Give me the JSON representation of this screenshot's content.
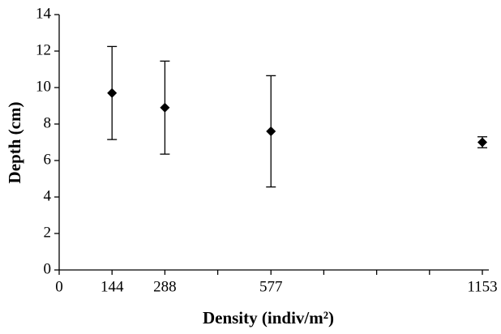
{
  "chart_data": {
    "type": "scatter",
    "x_label": "Density (indiv/m²)",
    "y_label": "Depth (cm)",
    "x": [
      144,
      288,
      577,
      1153
    ],
    "values": [
      9.7,
      8.9,
      7.6,
      7.0
    ],
    "errors": [
      2.55,
      2.55,
      3.05,
      0.3
    ],
    "color": "#000000",
    "xlim": [
      0,
      1153
    ],
    "xticks": [
      0,
      144,
      288,
      577,
      1153
    ],
    "xminor_ticks": [
      432,
      721,
      865,
      1009
    ],
    "ylim": [
      0,
      14
    ],
    "yticks": [
      0,
      2,
      4,
      6,
      8,
      10,
      12,
      14
    ]
  }
}
